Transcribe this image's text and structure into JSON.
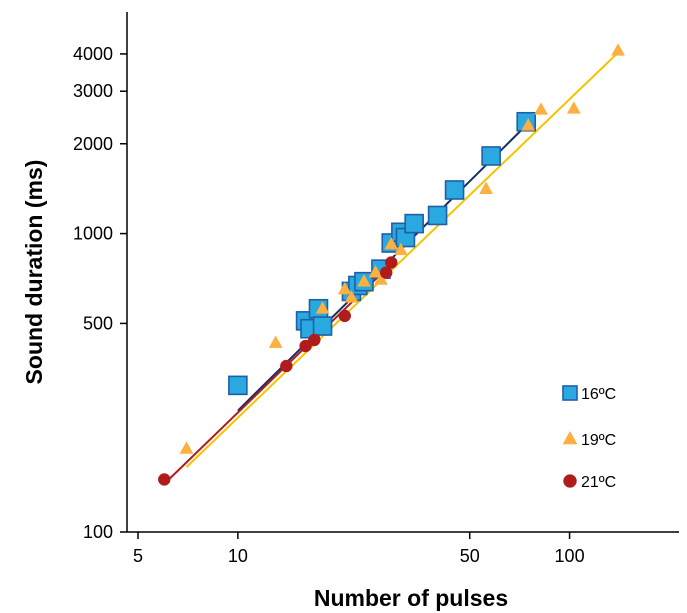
{
  "chart_data": {
    "type": "scatter",
    "title": "",
    "xlabel": "Number of pulses",
    "ylabel": "Sound duration (ms)",
    "x_scale": "log",
    "y_scale": "log",
    "xlim": [
      5,
      150
    ],
    "ylim": [
      100,
      5000
    ],
    "x_ticks": [
      5,
      10,
      50,
      100
    ],
    "y_ticks": [
      100,
      500,
      1000,
      2000,
      3000,
      4000
    ],
    "grid": false,
    "legend_position": "right",
    "series": [
      {
        "name": "16ºC",
        "marker": "square",
        "color": "#2aa8e0",
        "edge_color": "#1f5fa8",
        "trend_color": "#15305e",
        "trend_line": {
          "x": [
            10,
            75
          ],
          "y": [
            255,
            2340
          ]
        },
        "points": [
          [
            10,
            310
          ],
          [
            16,
            510
          ],
          [
            16.5,
            480
          ],
          [
            17.5,
            560
          ],
          [
            18,
            490
          ],
          [
            22,
            640
          ],
          [
            23,
            670
          ],
          [
            24,
            690
          ],
          [
            27,
            760
          ],
          [
            29,
            930
          ],
          [
            31,
            1010
          ],
          [
            32,
            970
          ],
          [
            34,
            1080
          ],
          [
            40,
            1150
          ],
          [
            45,
            1400
          ],
          [
            58,
            1820
          ],
          [
            74,
            2370
          ]
        ]
      },
      {
        "name": "19ºC",
        "marker": "triangle",
        "color": "#fbb040",
        "edge_color": "#fbb040",
        "trend_color": "#f5c400",
        "trend_line": {
          "x": [
            7,
            140
          ],
          "y": [
            165,
            4040
          ]
        },
        "points": [
          [
            7,
            190
          ],
          [
            13,
            430
          ],
          [
            18,
            560
          ],
          [
            21,
            650
          ],
          [
            22,
            610
          ],
          [
            24,
            690
          ],
          [
            26,
            740
          ],
          [
            27,
            700
          ],
          [
            29,
            920
          ],
          [
            31,
            880
          ],
          [
            56,
            1410
          ],
          [
            75,
            2300
          ],
          [
            82,
            2600
          ],
          [
            103,
            2620
          ],
          [
            140,
            4100
          ]
        ]
      },
      {
        "name": "21ºC",
        "marker": "circle",
        "color": "#b01c1c",
        "edge_color": "#b01c1c",
        "trend_color": "#b01c1c",
        "trend_line": {
          "x": [
            6,
            30
          ],
          "y": [
            145,
            820
          ]
        },
        "points": [
          [
            6,
            150
          ],
          [
            14,
            360
          ],
          [
            16,
            420
          ],
          [
            17,
            440
          ],
          [
            21,
            530
          ],
          [
            28,
            740
          ],
          [
            29,
            800
          ]
        ]
      }
    ]
  }
}
